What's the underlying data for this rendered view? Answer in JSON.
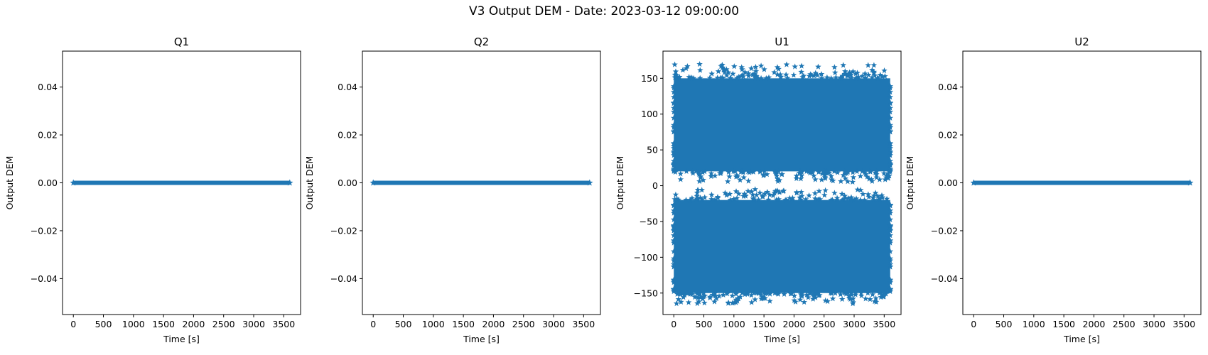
{
  "figure": {
    "title": "V3 Output DEM - Date: 2023-03-12 09:00:00"
  },
  "chart_data": [
    {
      "type": "scatter",
      "title": "Q1",
      "xlabel": "Time [s]",
      "ylabel": "Output DEM",
      "marker": "*",
      "color": "#1f77b4",
      "xlim": [
        -180,
        3780
      ],
      "ylim": [
        -0.055,
        0.055
      ],
      "xticks": [
        0,
        500,
        1000,
        1500,
        2000,
        2500,
        3000,
        3500
      ],
      "yticks": [
        -0.04,
        -0.02,
        0.0,
        0.02,
        0.04
      ],
      "ytick_labels": [
        "−0.04",
        "−0.02",
        "0.00",
        "0.02",
        "0.04"
      ],
      "series": [
        {
          "x_range": [
            0,
            3600
          ],
          "values_constant": 0.0
        }
      ]
    },
    {
      "type": "scatter",
      "title": "Q2",
      "xlabel": "Time [s]",
      "ylabel": "Output DEM",
      "marker": "*",
      "color": "#1f77b4",
      "xlim": [
        -180,
        3780
      ],
      "ylim": [
        -0.055,
        0.055
      ],
      "xticks": [
        0,
        500,
        1000,
        1500,
        2000,
        2500,
        3000,
        3500
      ],
      "yticks": [
        -0.04,
        -0.02,
        0.0,
        0.02,
        0.04
      ],
      "ytick_labels": [
        "−0.04",
        "−0.02",
        "0.00",
        "0.02",
        "0.04"
      ],
      "series": [
        {
          "x_range": [
            0,
            3600
          ],
          "values_constant": 0.0
        }
      ]
    },
    {
      "type": "scatter",
      "title": "U1",
      "xlabel": "Time [s]",
      "ylabel": "Output DEM",
      "marker": "*",
      "color": "#1f77b4",
      "xlim": [
        -180,
        3780
      ],
      "ylim": [
        -180,
        188
      ],
      "xticks": [
        0,
        500,
        1000,
        1500,
        2000,
        2500,
        3000,
        3500
      ],
      "yticks": [
        -150,
        -100,
        -50,
        0,
        50,
        100,
        150
      ],
      "ytick_labels": [
        "−150",
        "−100",
        "−50",
        "0",
        "50",
        "100",
        "150"
      ],
      "series": [
        {
          "x_range": [
            0,
            3600
          ],
          "dense_band": [
            20,
            150
          ],
          "outlier_range": [
            5,
            170
          ]
        },
        {
          "x_range": [
            0,
            3600
          ],
          "dense_band": [
            -150,
            -20
          ],
          "outlier_range": [
            -165,
            -5
          ]
        }
      ]
    },
    {
      "type": "scatter",
      "title": "U2",
      "xlabel": "Time [s]",
      "ylabel": "Output DEM",
      "marker": "*",
      "color": "#1f77b4",
      "xlim": [
        -180,
        3780
      ],
      "ylim": [
        -0.055,
        0.055
      ],
      "xticks": [
        0,
        500,
        1000,
        1500,
        2000,
        2500,
        3000,
        3500
      ],
      "yticks": [
        -0.04,
        -0.02,
        0.0,
        0.02,
        0.04
      ],
      "ytick_labels": [
        "−0.04",
        "−0.02",
        "0.00",
        "0.02",
        "0.04"
      ],
      "series": [
        {
          "x_range": [
            0,
            3600
          ],
          "values_constant": 0.0
        }
      ]
    }
  ]
}
